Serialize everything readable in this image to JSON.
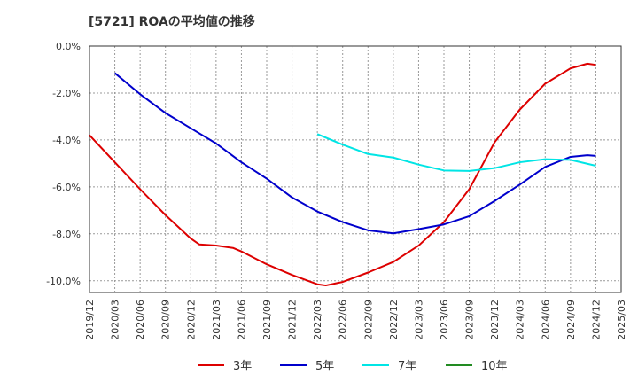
{
  "chart_data": {
    "type": "line",
    "title": "[5721]  ROAの平均値の推移",
    "xlabel": "",
    "ylabel": "",
    "x_ticks": [
      "2019/12",
      "2020/03",
      "2020/06",
      "2020/09",
      "2020/12",
      "2021/03",
      "2021/06",
      "2021/09",
      "2021/12",
      "2022/03",
      "2022/06",
      "2022/09",
      "2022/12",
      "2023/03",
      "2023/06",
      "2023/09",
      "2023/12",
      "2024/03",
      "2024/06",
      "2024/09",
      "2024/12",
      "2025/03"
    ],
    "y_ticks": [
      "0.0%",
      "-2.0%",
      "-4.0%",
      "-6.0%",
      "-8.0%",
      "-10.0%"
    ],
    "y_tick_values": [
      0,
      -2,
      -4,
      -6,
      -8,
      -10
    ],
    "ylim": [
      -10.5,
      0
    ],
    "x_range": [
      "2019/12",
      "2025/03"
    ],
    "grid": true,
    "legend_position": "bottom",
    "series": [
      {
        "name": "3年",
        "color": "#dd0000",
        "points": [
          [
            "2019/12",
            -3.8
          ],
          [
            "2020/03",
            -4.95
          ],
          [
            "2020/06",
            -6.1
          ],
          [
            "2020/09",
            -7.2
          ],
          [
            "2020/12",
            -8.2
          ],
          [
            "2021/01",
            -8.45
          ],
          [
            "2021/03",
            -8.5
          ],
          [
            "2021/05",
            -8.6
          ],
          [
            "2021/06",
            -8.75
          ],
          [
            "2021/09",
            -9.3
          ],
          [
            "2021/12",
            -9.75
          ],
          [
            "2022/03",
            -10.15
          ],
          [
            "2022/04",
            -10.2
          ],
          [
            "2022/06",
            -10.05
          ],
          [
            "2022/09",
            -9.65
          ],
          [
            "2022/12",
            -9.2
          ],
          [
            "2023/03",
            -8.5
          ],
          [
            "2023/06",
            -7.5
          ],
          [
            "2023/09",
            -6.1
          ],
          [
            "2023/12",
            -4.1
          ],
          [
            "2024/03",
            -2.7
          ],
          [
            "2024/06",
            -1.6
          ],
          [
            "2024/09",
            -0.95
          ],
          [
            "2024/11",
            -0.75
          ],
          [
            "2024/12",
            -0.8
          ]
        ]
      },
      {
        "name": "5年",
        "color": "#0000cc",
        "points": [
          [
            "2020/03",
            -1.15
          ],
          [
            "2020/06",
            -2.05
          ],
          [
            "2020/09",
            -2.85
          ],
          [
            "2020/12",
            -3.5
          ],
          [
            "2021/03",
            -4.15
          ],
          [
            "2021/06",
            -4.95
          ],
          [
            "2021/09",
            -5.65
          ],
          [
            "2021/12",
            -6.45
          ],
          [
            "2022/03",
            -7.05
          ],
          [
            "2022/06",
            -7.5
          ],
          [
            "2022/09",
            -7.85
          ],
          [
            "2022/12",
            -7.98
          ],
          [
            "2023/03",
            -7.8
          ],
          [
            "2023/06",
            -7.6
          ],
          [
            "2023/09",
            -7.25
          ],
          [
            "2023/12",
            -6.6
          ],
          [
            "2024/03",
            -5.9
          ],
          [
            "2024/06",
            -5.15
          ],
          [
            "2024/09",
            -4.72
          ],
          [
            "2024/11",
            -4.65
          ],
          [
            "2024/12",
            -4.68
          ]
        ]
      },
      {
        "name": "7年",
        "color": "#00e5e5",
        "points": [
          [
            "2022/03",
            -3.75
          ],
          [
            "2022/06",
            -4.2
          ],
          [
            "2022/09",
            -4.6
          ],
          [
            "2022/12",
            -4.75
          ],
          [
            "2023/03",
            -5.05
          ],
          [
            "2023/06",
            -5.3
          ],
          [
            "2023/09",
            -5.32
          ],
          [
            "2023/12",
            -5.2
          ],
          [
            "2024/03",
            -4.95
          ],
          [
            "2024/06",
            -4.82
          ],
          [
            "2024/09",
            -4.85
          ],
          [
            "2024/12",
            -5.1
          ]
        ]
      },
      {
        "name": "10年",
        "color": "#228b22",
        "points": []
      }
    ]
  }
}
